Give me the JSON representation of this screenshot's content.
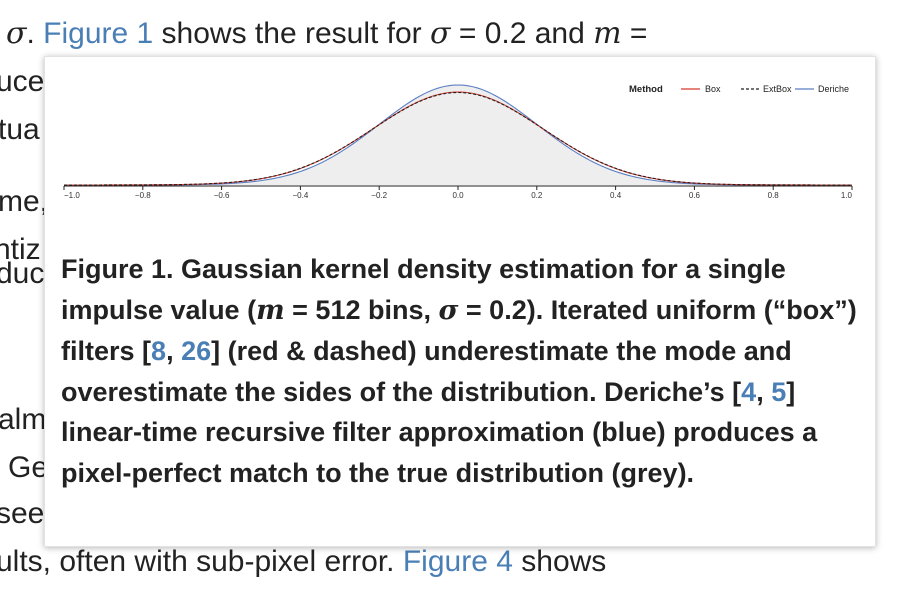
{
  "background_text": {
    "line1": {
      "prefix_math": "σ",
      "after_prefix": ". ",
      "link": "Figure 1",
      "middle": " shows the result for ",
      "sigma": "σ",
      "equals_value": " = 0.2 and ",
      "m": "m",
      "trailing": " ="
    },
    "left_fragments": [
      "uce",
      "tua",
      "me,",
      "ntiz",
      "duc",
      "alm",
      "Ge",
      "see"
    ],
    "last_line": {
      "prefix": "ults, often with sub-pixel error. ",
      "link": "Figure 4",
      "suffix": " shows"
    }
  },
  "popup": {
    "caption": {
      "part1": "Figure 1. Gaussian kernel density estimation for a single impulse value (",
      "m": "m",
      "part2": " = 512 bins, ",
      "sigma": "σ",
      "part3": " = 0.2). Iterated uniform (“box”) filters [",
      "ref1": "8",
      "comma1": ", ",
      "ref2": "26",
      "part4": "] (red & dashed) underestimate the mode and overestimate the sides of the distribution. Deriche’s [",
      "ref3": "4",
      "comma2": ", ",
      "ref4": "5",
      "part5": "] linear-time recursive filter approximation (blue) produces a pixel-perfect match to the true distribution (grey)."
    }
  },
  "chart_data": {
    "type": "line",
    "x_range": [
      -1.0,
      1.0
    ],
    "xticks": [
      "−1.0",
      "−0.8",
      "−0.6",
      "−0.4",
      "−0.2",
      "0.0",
      "0.2",
      "0.4",
      "0.6",
      "0.8",
      "1.0"
    ],
    "xtick_values": [
      -1.0,
      -0.8,
      -0.6,
      -0.4,
      -0.2,
      0.0,
      0.2,
      0.4,
      0.6,
      0.8,
      1.0
    ],
    "sigma": 0.2,
    "legend_title": "Method",
    "legend_position": "top-right",
    "series": [
      {
        "name": "Box",
        "style": "solid",
        "color": "#d43a2e",
        "peak_ratio": 0.93
      },
      {
        "name": "ExtBox",
        "style": "dashed",
        "color": "#222222",
        "peak_ratio": 0.925
      },
      {
        "name": "Deriche",
        "style": "solid",
        "color": "#5b7fc4",
        "peak_ratio": 1.0
      }
    ],
    "true_distribution_fill": "#eeeeee"
  }
}
